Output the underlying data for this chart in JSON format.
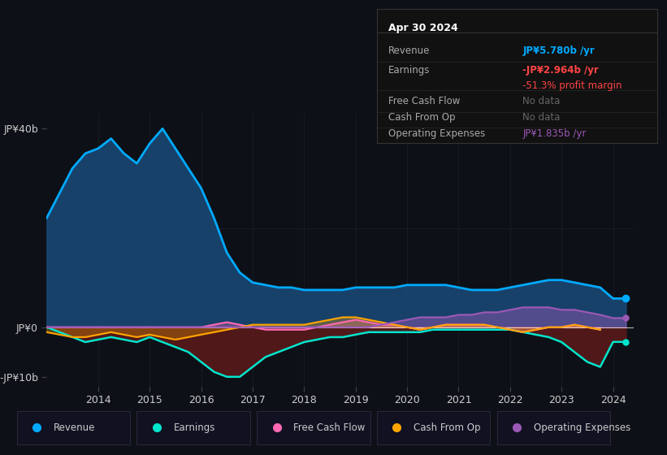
{
  "background_color": "#0d1117",
  "plot_bg_color": "#0d1117",
  "title": "Apr 30 2024",
  "years": [
    2013.0,
    2013.25,
    2013.5,
    2013.75,
    2014.0,
    2014.25,
    2014.5,
    2014.75,
    2015.0,
    2015.25,
    2015.5,
    2015.75,
    2016.0,
    2016.25,
    2016.5,
    2016.75,
    2017.0,
    2017.25,
    2017.5,
    2017.75,
    2018.0,
    2018.25,
    2018.5,
    2018.75,
    2019.0,
    2019.25,
    2019.5,
    2019.75,
    2020.0,
    2020.25,
    2020.5,
    2020.75,
    2021.0,
    2021.25,
    2021.5,
    2021.75,
    2022.0,
    2022.25,
    2022.5,
    2022.75,
    2023.0,
    2023.25,
    2023.5,
    2023.75,
    2024.0,
    2024.25
  ],
  "revenue": [
    22,
    27,
    32,
    35,
    36,
    38,
    35,
    33,
    37,
    40,
    36,
    32,
    28,
    22,
    15,
    11,
    9,
    8.5,
    8,
    8,
    7.5,
    7.5,
    7.5,
    7.5,
    8,
    8,
    8,
    8,
    8.5,
    8.5,
    8.5,
    8.5,
    8,
    7.5,
    7.5,
    7.5,
    8,
    8.5,
    9,
    9.5,
    9.5,
    9,
    8.5,
    8,
    5.78,
    5.78
  ],
  "earnings": [
    0,
    -1,
    -2,
    -3,
    -2.5,
    -2,
    -2.5,
    -3,
    -2,
    -3,
    -4,
    -5,
    -7,
    -9,
    -10,
    -10,
    -8,
    -6,
    -5,
    -4,
    -3,
    -2.5,
    -2,
    -2,
    -1.5,
    -1,
    -1,
    -1,
    -1,
    -1,
    -0.5,
    -0.5,
    -0.5,
    -0.5,
    -0.5,
    -0.5,
    -0.5,
    -1,
    -1.5,
    -2,
    -3,
    -5,
    -7,
    -8,
    -2.964,
    -2.964
  ],
  "free_cash_flow": [
    0,
    0,
    0,
    0,
    0,
    0,
    0,
    0,
    0,
    0,
    0,
    0,
    0,
    0.5,
    1,
    0.5,
    0,
    -0.5,
    -0.5,
    -0.5,
    -0.5,
    0,
    0.5,
    1,
    1.5,
    1,
    0.5,
    0.5,
    0,
    -0.5,
    0,
    0.5,
    0.5,
    0.5,
    0.5,
    0,
    -0.5,
    -1,
    -0.5,
    0,
    0,
    0.5,
    0,
    -0.5,
    null,
    null
  ],
  "cash_from_op": [
    -1,
    -1.5,
    -2,
    -2,
    -1.5,
    -1,
    -1.5,
    -2,
    -1.5,
    -2,
    -2.5,
    -2,
    -1.5,
    -1,
    -0.5,
    0,
    0.5,
    0.5,
    0.5,
    0.5,
    0.5,
    1,
    1.5,
    2,
    2,
    1.5,
    1,
    0.5,
    0,
    -0.5,
    0,
    0.5,
    0.5,
    0.5,
    0.5,
    0,
    -0.5,
    -1,
    -0.5,
    0,
    0,
    0.5,
    0,
    -0.5,
    null,
    null
  ],
  "op_expenses": [
    0,
    0,
    0,
    0,
    0,
    0,
    0,
    0,
    0,
    0,
    0,
    0,
    0,
    0,
    0,
    0,
    0,
    0,
    0,
    0,
    0,
    0,
    0,
    0,
    0,
    0,
    0.5,
    1,
    1.5,
    2,
    2,
    2,
    2.5,
    2.5,
    3,
    3,
    3.5,
    4,
    4,
    4,
    3.5,
    3.5,
    3,
    2.5,
    1.835,
    1.835
  ],
  "revenue_color": "#00aaff",
  "revenue_fill": "#1a4a7a",
  "earnings_color": "#00e5cc",
  "earnings_fill": "#5c1a1a",
  "free_cash_flow_color": "#ff69b4",
  "free_cash_flow_fill": "#8b0050",
  "cash_from_op_color": "#ffa500",
  "cash_from_op_fill": "#7a4500",
  "op_expenses_color": "#9b59b6",
  "op_expenses_fill": "#4a1a6a",
  "grid_color": "#2a3040",
  "text_color": "#cccccc",
  "yticks": [
    -10,
    0,
    40
  ],
  "ylabels": [
    "-JP¥10b",
    "JP¥0",
    "JP¥40b"
  ],
  "xticks": [
    2014,
    2015,
    2016,
    2017,
    2018,
    2019,
    2020,
    2021,
    2022,
    2023,
    2024
  ],
  "info_box": {
    "title": "Apr 30 2024",
    "rows": [
      {
        "label": "Revenue",
        "value": "JP¥5.780b /yr",
        "value_color": "#00aaff"
      },
      {
        "label": "Earnings",
        "value": "-JP¥2.964b /yr",
        "value_color": "#ff4444"
      },
      {
        "label": "",
        "value": "-51.3% profit margin",
        "value_color": "#ff4444"
      },
      {
        "label": "Free Cash Flow",
        "value": "No data",
        "value_color": "#666666"
      },
      {
        "label": "Cash From Op",
        "value": "No data",
        "value_color": "#666666"
      },
      {
        "label": "Operating Expenses",
        "value": "JP¥1.835b /yr",
        "value_color": "#9b59b6"
      }
    ]
  },
  "legend_items": [
    {
      "label": "Revenue",
      "color": "#00aaff"
    },
    {
      "label": "Earnings",
      "color": "#00e5cc"
    },
    {
      "label": "Free Cash Flow",
      "color": "#ff69b4"
    },
    {
      "label": "Cash From Op",
      "color": "#ffa500"
    },
    {
      "label": "Operating Expenses",
      "color": "#9b59b6"
    }
  ]
}
